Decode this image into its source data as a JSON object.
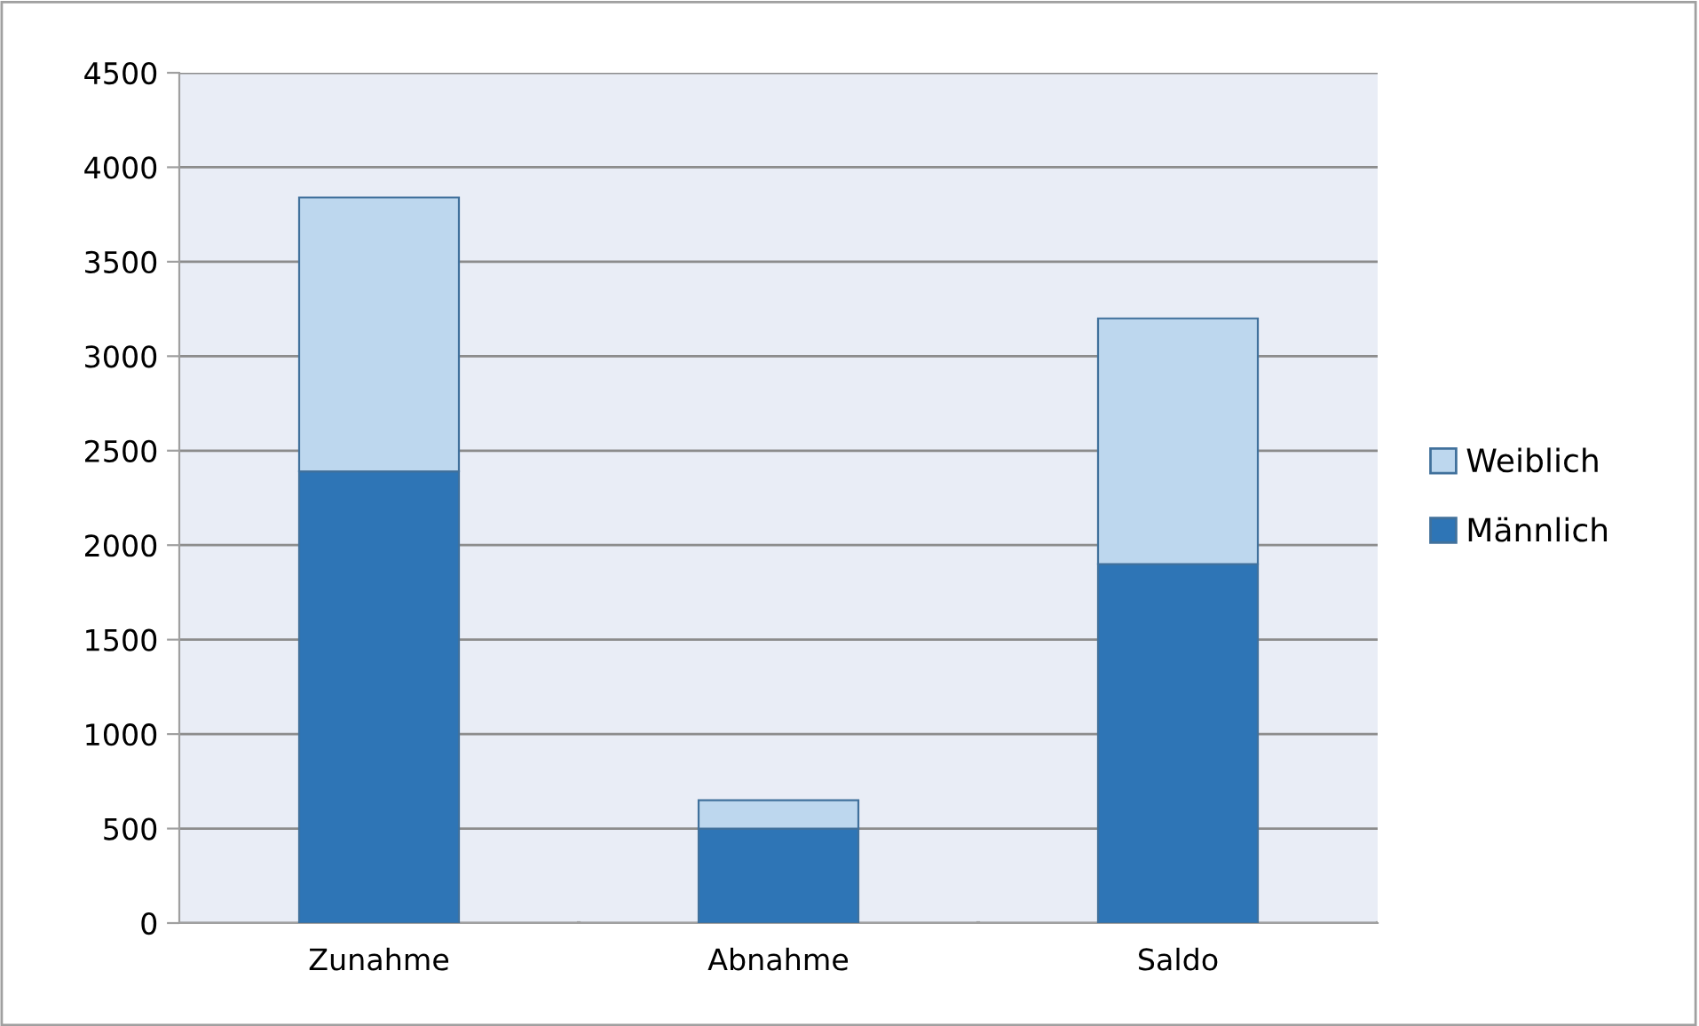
{
  "chart_data": {
    "type": "bar",
    "stacked": true,
    "categories": [
      "Zunahme",
      "Abnahme",
      "Saldo"
    ],
    "series": [
      {
        "name": "Männlich",
        "color": "#2e75b6",
        "values": [
          2390,
          500,
          1900
        ]
      },
      {
        "name": "Weiblich",
        "color": "#bdd7ee",
        "values": [
          1450,
          150,
          1300
        ]
      }
    ],
    "ylim": [
      0,
      4500
    ],
    "yticks": [
      0,
      500,
      1000,
      1500,
      2000,
      2500,
      3000,
      3500,
      4000,
      4500
    ],
    "grid": "y",
    "legend": "right"
  }
}
